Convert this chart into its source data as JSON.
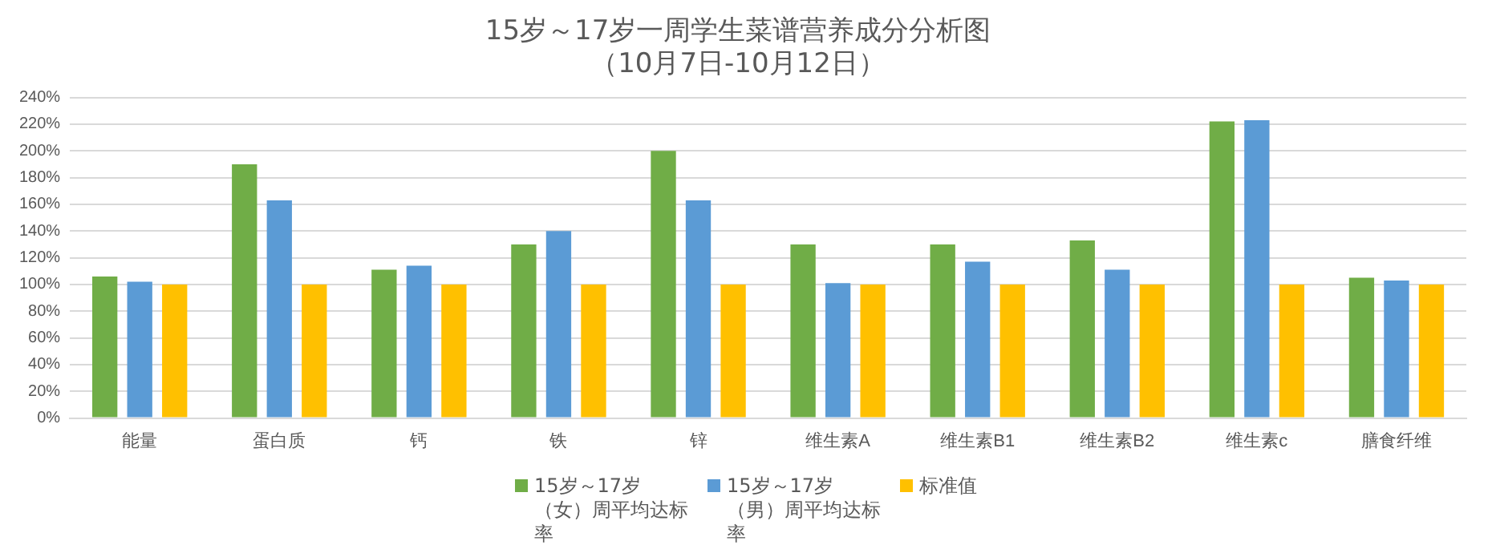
{
  "chart_data": {
    "type": "bar",
    "title": "15岁～17岁一周学生菜谱营养成分分析图",
    "subtitle": "（10月7日-10月12日）",
    "categories": [
      "能量",
      "蛋白质",
      "钙",
      "铁",
      "锌",
      "维生素A",
      "维生素B1",
      "维生素B2",
      "维生素c",
      "膳食纤维"
    ],
    "series": [
      {
        "name": "15岁～17岁（女）周平均达标率",
        "color": "#70ad47",
        "values": [
          106,
          190,
          111,
          130,
          200,
          130,
          130,
          133,
          222,
          105
        ]
      },
      {
        "name": "15岁～17岁（男）周平均达标率",
        "color": "#5b9bd5",
        "values": [
          102,
          163,
          114,
          140,
          163,
          101,
          117,
          111,
          223,
          103
        ]
      },
      {
        "name": "标准值",
        "color": "#ffc000",
        "values": [
          100,
          100,
          100,
          100,
          100,
          100,
          100,
          100,
          100,
          100
        ]
      }
    ],
    "ylim": [
      0,
      240
    ],
    "yticks": [
      {
        "value": 0,
        "label": "0%"
      },
      {
        "value": 20,
        "label": "20%"
      },
      {
        "value": 40,
        "label": "40%"
      },
      {
        "value": 60,
        "label": "60%"
      },
      {
        "value": 80,
        "label": "80%"
      },
      {
        "value": 100,
        "label": "100%"
      },
      {
        "value": 120,
        "label": "120%"
      },
      {
        "value": 140,
        "label": "140%"
      },
      {
        "value": 160,
        "label": "160%"
      },
      {
        "value": 180,
        "label": "180%"
      },
      {
        "value": 200,
        "label": "200%"
      },
      {
        "value": 220,
        "label": "220%"
      },
      {
        "value": 240,
        "label": "240%"
      }
    ],
    "grid": "y",
    "legend": "bottom"
  }
}
